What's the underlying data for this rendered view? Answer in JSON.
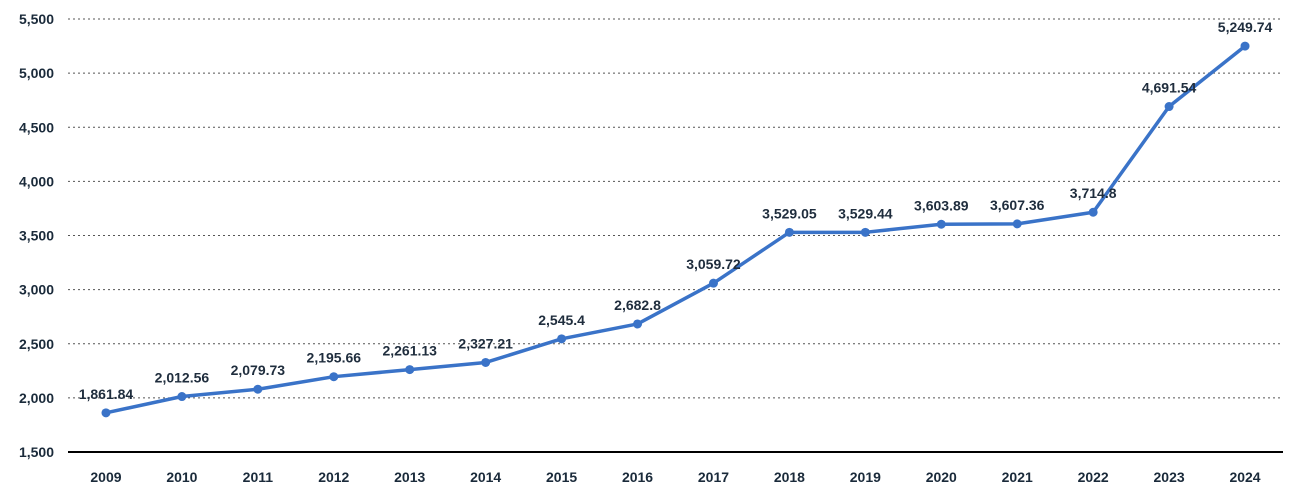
{
  "chart_data": {
    "type": "line",
    "title": "",
    "xlabel": "",
    "ylabel": "",
    "ylim": [
      1500,
      5500
    ],
    "yticks": [
      1500,
      2000,
      2500,
      3000,
      3500,
      4000,
      4500,
      5000,
      5500
    ],
    "ytick_labels": [
      "1,500",
      "2,000",
      "2,500",
      "3,000",
      "3,500",
      "4,000",
      "4,500",
      "5,000",
      "5,500"
    ],
    "grid": true,
    "legend": "none",
    "categories": [
      "2009",
      "2010",
      "2011",
      "2012",
      "2013",
      "2014",
      "2015",
      "2016",
      "2017",
      "2018",
      "2019",
      "2020",
      "2021",
      "2022",
      "2023",
      "2024"
    ],
    "series": [
      {
        "color": "#3a73c8",
        "values": [
          1861.84,
          2012.56,
          2079.73,
          2195.66,
          2261.13,
          2327.21,
          2545.4,
          2682.8,
          3059.72,
          3529.05,
          3529.44,
          3603.89,
          3607.36,
          3714.8,
          4691.54,
          5249.74
        ],
        "labels": [
          "1,861.84",
          "2,012.56",
          "2,079.73",
          "2,195.66",
          "2,261.13",
          "2,327.21",
          "2,545.4",
          "2,682.8",
          "3,059.72",
          "3,529.05",
          "3,529.44",
          "3,603.89",
          "3,607.36",
          "3,714.8",
          "4,691.54",
          "5,249.74"
        ]
      }
    ]
  }
}
